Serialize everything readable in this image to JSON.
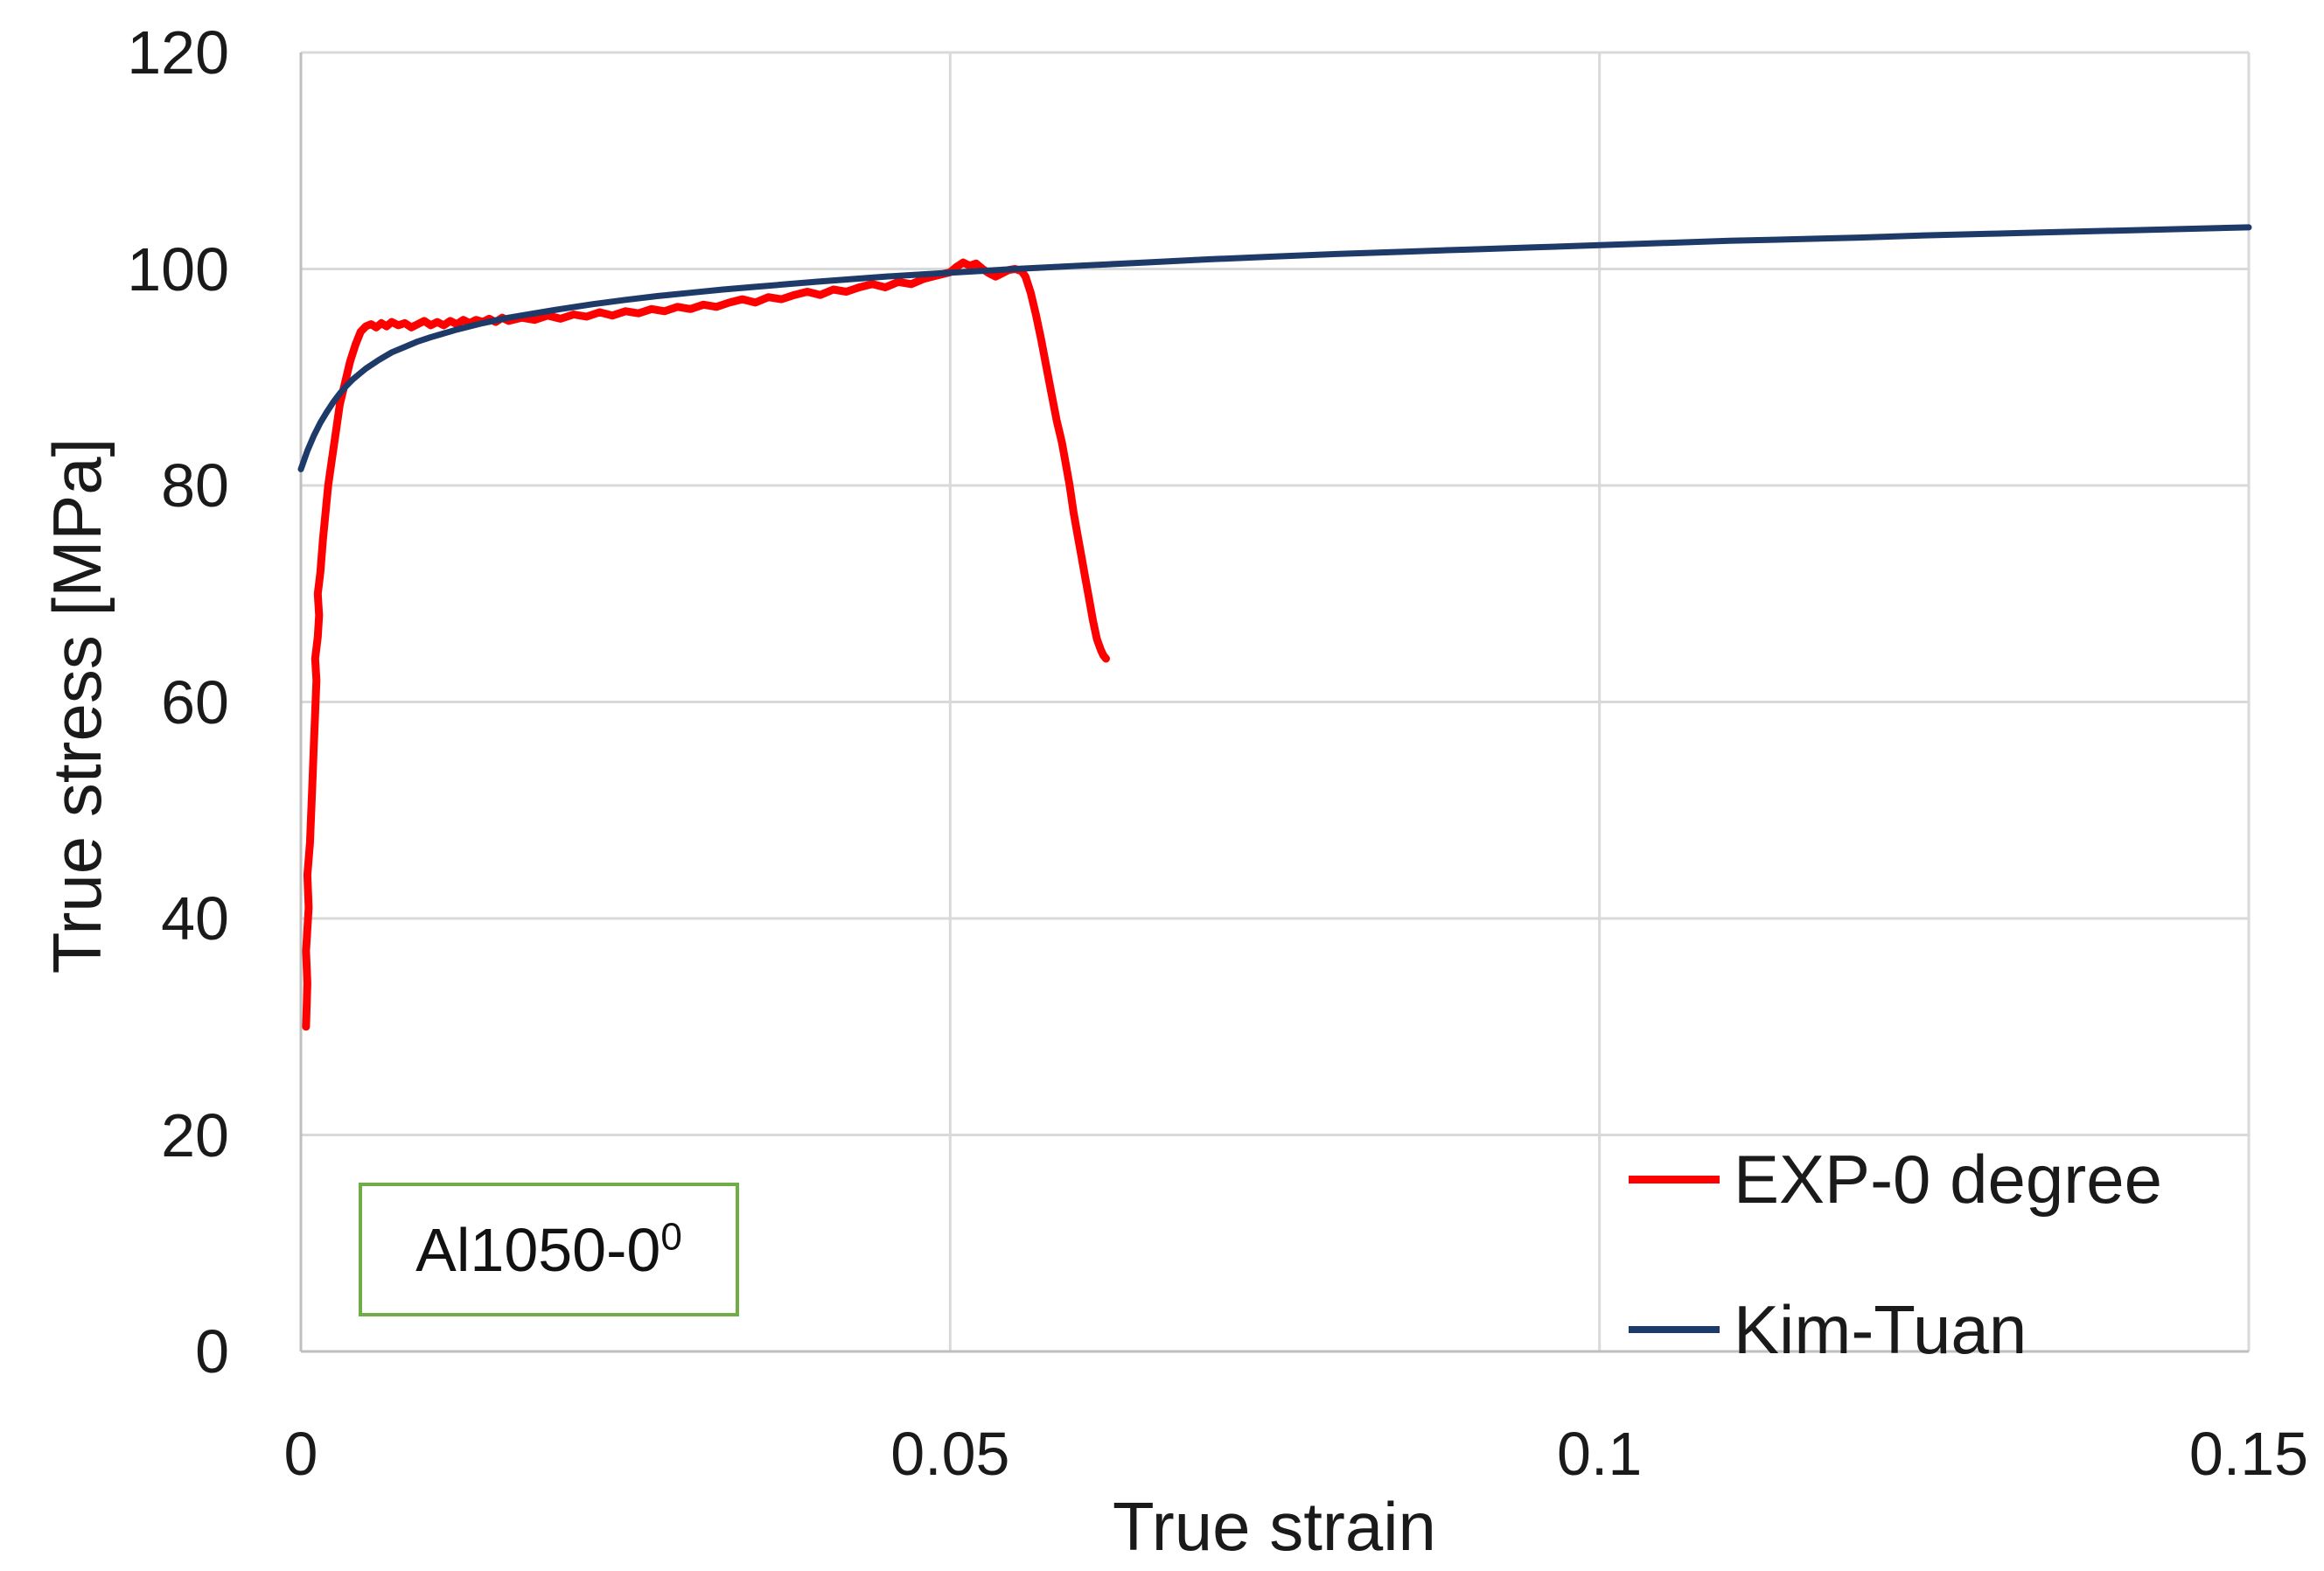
{
  "colors": {
    "background": "#FFFFFF",
    "gridline": "#D9D9D9",
    "axis_line": "#BFBFBF",
    "text": "#1A1A1A",
    "annotation_border": "#70AD47",
    "exp_series": "#FF0000",
    "kim_tuan_series": "#1E3A68"
  },
  "chart_data": {
    "type": "line",
    "title": "",
    "xlabel": "True strain",
    "ylabel": "True stress [MPa]",
    "xlim": [
      0,
      0.15
    ],
    "ylim": [
      0,
      120
    ],
    "grid": true,
    "legend_position": "inside-bottom-right",
    "x_ticks": [
      {
        "value": 0,
        "label": "0"
      },
      {
        "value": 0.05,
        "label": "0.05"
      },
      {
        "value": 0.1,
        "label": "0.1"
      },
      {
        "value": 0.15,
        "label": "0.15"
      }
    ],
    "y_ticks": [
      {
        "value": 0,
        "label": "0"
      },
      {
        "value": 20,
        "label": "20"
      },
      {
        "value": 40,
        "label": "40"
      },
      {
        "value": 60,
        "label": "60"
      },
      {
        "value": 80,
        "label": "80"
      },
      {
        "value": 100,
        "label": "100"
      },
      {
        "value": 120,
        "label": "120"
      }
    ],
    "annotation": {
      "text": "Al1050-0",
      "superscript": "0"
    },
    "series": [
      {
        "name": "EXP-0 degree",
        "color": "#FF0000",
        "stroke_width": 9,
        "points": [
          [
            0.0004,
            30
          ],
          [
            0.0005,
            34
          ],
          [
            0.0004,
            37
          ],
          [
            0.0006,
            41
          ],
          [
            0.0005,
            44
          ],
          [
            0.0007,
            47
          ],
          [
            0.0008,
            50
          ],
          [
            0.0009,
            53
          ],
          [
            0.001,
            56
          ],
          [
            0.0011,
            59
          ],
          [
            0.0012,
            62
          ],
          [
            0.0011,
            64
          ],
          [
            0.0013,
            66
          ],
          [
            0.0014,
            68
          ],
          [
            0.0013,
            70
          ],
          [
            0.0015,
            72
          ],
          [
            0.0017,
            75
          ],
          [
            0.0019,
            77.5
          ],
          [
            0.0021,
            80
          ],
          [
            0.0024,
            82.5
          ],
          [
            0.0027,
            85
          ],
          [
            0.003,
            87.5
          ],
          [
            0.0034,
            89.5
          ],
          [
            0.0038,
            91.5
          ],
          [
            0.0042,
            93
          ],
          [
            0.0046,
            94.2
          ],
          [
            0.005,
            94.7
          ],
          [
            0.0054,
            94.9
          ],
          [
            0.0058,
            94.6
          ],
          [
            0.0062,
            95.0
          ],
          [
            0.0066,
            94.7
          ],
          [
            0.007,
            95.1
          ],
          [
            0.0075,
            94.8
          ],
          [
            0.008,
            95.0
          ],
          [
            0.0085,
            94.6
          ],
          [
            0.009,
            94.9
          ],
          [
            0.0095,
            95.2
          ],
          [
            0.01,
            94.8
          ],
          [
            0.0105,
            95.1
          ],
          [
            0.011,
            94.8
          ],
          [
            0.0115,
            95.2
          ],
          [
            0.012,
            94.9
          ],
          [
            0.0125,
            95.3
          ],
          [
            0.013,
            95.0
          ],
          [
            0.0135,
            95.3
          ],
          [
            0.014,
            95.1
          ],
          [
            0.0145,
            95.4
          ],
          [
            0.015,
            95.1
          ],
          [
            0.0155,
            95.5
          ],
          [
            0.016,
            95.2
          ],
          [
            0.017,
            95.5
          ],
          [
            0.018,
            95.3
          ],
          [
            0.019,
            95.7
          ],
          [
            0.02,
            95.4
          ],
          [
            0.021,
            95.8
          ],
          [
            0.022,
            95.6
          ],
          [
            0.023,
            96.0
          ],
          [
            0.024,
            95.7
          ],
          [
            0.025,
            96.1
          ],
          [
            0.026,
            95.9
          ],
          [
            0.027,
            96.3
          ],
          [
            0.028,
            96.1
          ],
          [
            0.029,
            96.5
          ],
          [
            0.03,
            96.3
          ],
          [
            0.031,
            96.7
          ],
          [
            0.032,
            96.5
          ],
          [
            0.033,
            96.9
          ],
          [
            0.034,
            97.2
          ],
          [
            0.035,
            96.9
          ],
          [
            0.036,
            97.4
          ],
          [
            0.037,
            97.2
          ],
          [
            0.038,
            97.6
          ],
          [
            0.039,
            97.9
          ],
          [
            0.04,
            97.6
          ],
          [
            0.041,
            98.1
          ],
          [
            0.042,
            97.9
          ],
          [
            0.043,
            98.3
          ],
          [
            0.044,
            98.6
          ],
          [
            0.045,
            98.3
          ],
          [
            0.046,
            98.8
          ],
          [
            0.047,
            98.6
          ],
          [
            0.048,
            99.1
          ],
          [
            0.049,
            99.4
          ],
          [
            0.05,
            99.7
          ],
          [
            0.0505,
            100.2
          ],
          [
            0.051,
            100.6
          ],
          [
            0.0515,
            100.3
          ],
          [
            0.052,
            100.5
          ],
          [
            0.0525,
            100.0
          ],
          [
            0.053,
            99.6
          ],
          [
            0.0535,
            99.3
          ],
          [
            0.054,
            99.6
          ],
          [
            0.0545,
            99.9
          ],
          [
            0.055,
            100.0
          ],
          [
            0.0555,
            99.8
          ],
          [
            0.0558,
            99.3
          ],
          [
            0.0562,
            97.8
          ],
          [
            0.0566,
            95.8
          ],
          [
            0.057,
            93.5
          ],
          [
            0.0574,
            91.0
          ],
          [
            0.0578,
            88.5
          ],
          [
            0.0582,
            86.0
          ],
          [
            0.0586,
            84.0
          ],
          [
            0.0589,
            82.0
          ],
          [
            0.0592,
            80.0
          ],
          [
            0.0595,
            77.5
          ],
          [
            0.0598,
            75.5
          ],
          [
            0.0601,
            73.5
          ],
          [
            0.0604,
            71.5
          ],
          [
            0.0607,
            69.5
          ],
          [
            0.061,
            67.5
          ],
          [
            0.0613,
            65.8
          ],
          [
            0.0616,
            64.8
          ],
          [
            0.0618,
            64.3
          ],
          [
            0.062,
            64.0
          ]
        ]
      },
      {
        "name": "Kim-Tuan",
        "color": "#1E3A68",
        "stroke_width": 7,
        "points": [
          [
            0,
            81.5
          ],
          [
            0.0005,
            83.2
          ],
          [
            0.001,
            84.6
          ],
          [
            0.0015,
            85.8
          ],
          [
            0.002,
            86.8
          ],
          [
            0.0025,
            87.7
          ],
          [
            0.003,
            88.5
          ],
          [
            0.0035,
            89.2
          ],
          [
            0.004,
            89.8
          ],
          [
            0.0045,
            90.3
          ],
          [
            0.005,
            90.8
          ],
          [
            0.006,
            91.6
          ],
          [
            0.007,
            92.3
          ],
          [
            0.008,
            92.8
          ],
          [
            0.009,
            93.3
          ],
          [
            0.01,
            93.7
          ],
          [
            0.012,
            94.4
          ],
          [
            0.014,
            95.0
          ],
          [
            0.016,
            95.5
          ],
          [
            0.018,
            95.9
          ],
          [
            0.02,
            96.3
          ],
          [
            0.0225,
            96.75
          ],
          [
            0.025,
            97.15
          ],
          [
            0.0275,
            97.5
          ],
          [
            0.03,
            97.8
          ],
          [
            0.0325,
            98.1
          ],
          [
            0.035,
            98.35
          ],
          [
            0.0375,
            98.6
          ],
          [
            0.04,
            98.85
          ],
          [
            0.045,
            99.3
          ],
          [
            0.05,
            99.65
          ],
          [
            0.055,
            100.0
          ],
          [
            0.06,
            100.3
          ],
          [
            0.065,
            100.6
          ],
          [
            0.07,
            100.9
          ],
          [
            0.075,
            101.15
          ],
          [
            0.08,
            101.4
          ],
          [
            0.085,
            101.6
          ],
          [
            0.09,
            101.8
          ],
          [
            0.095,
            102.0
          ],
          [
            0.1,
            102.2
          ],
          [
            0.105,
            102.4
          ],
          [
            0.11,
            102.6
          ],
          [
            0.115,
            102.75
          ],
          [
            0.12,
            102.9
          ],
          [
            0.125,
            103.1
          ],
          [
            0.13,
            103.25
          ],
          [
            0.135,
            103.4
          ],
          [
            0.14,
            103.55
          ],
          [
            0.145,
            103.7
          ],
          [
            0.15,
            103.85
          ]
        ]
      }
    ]
  }
}
